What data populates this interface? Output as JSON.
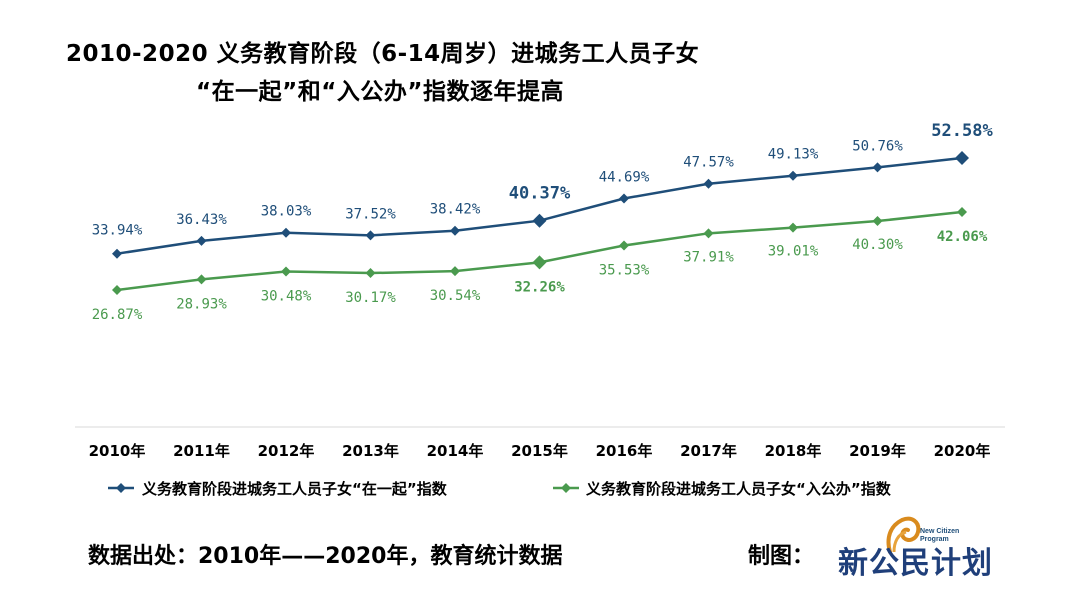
{
  "title_line1": "2010-2020 义务教育阶段（6-14周岁）进城务工人员子女",
  "title_line2": "“在一起”和“入公办”指数逐年提高",
  "source_text": "数据出处：2010年——2020年，教育统计数据",
  "credit_text": "制图：",
  "logo": {
    "small_text": "New Citizen Program",
    "main_text": "新公民计划"
  },
  "colors": {
    "series1": "#1f4e79",
    "series2": "#4a9a4e"
  },
  "chart_data": {
    "type": "line",
    "categories": [
      "2010年",
      "2011年",
      "2012年",
      "2013年",
      "2014年",
      "2015年",
      "2016年",
      "2017年",
      "2018年",
      "2019年",
      "2020年"
    ],
    "series": [
      {
        "name": "义务教育阶段进城务工人员子女“在一起”指数",
        "values": [
          33.94,
          36.43,
          38.03,
          37.52,
          38.42,
          40.37,
          44.69,
          47.57,
          49.13,
          50.76,
          52.58
        ],
        "labels": [
          "33.94%",
          "36.43%",
          "38.03%",
          "37.52%",
          "38.42%",
          "40.37%",
          "44.69%",
          "47.57%",
          "49.13%",
          "50.76%",
          "52.58%"
        ]
      },
      {
        "name": "义务教育阶段进城务工人员子女“入公办”指数",
        "values": [
          26.87,
          28.93,
          30.48,
          30.17,
          30.54,
          32.26,
          35.53,
          37.91,
          39.01,
          40.3,
          42.06
        ],
        "labels": [
          "26.87%",
          "28.93%",
          "30.48%",
          "30.17%",
          "30.54%",
          "32.26%",
          "35.53%",
          "37.91%",
          "39.01%",
          "40.30%",
          "42.06%"
        ]
      }
    ],
    "emphasized_points": [
      "2015年",
      "2020年"
    ],
    "grid": false,
    "legend": "bottom"
  }
}
